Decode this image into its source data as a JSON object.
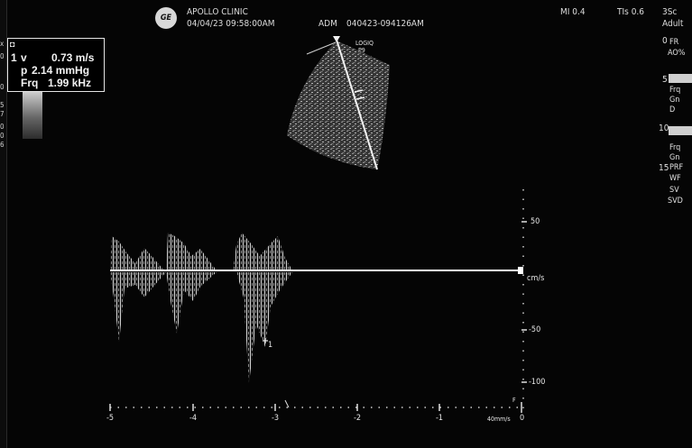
{
  "header": {
    "clinic_name": "APOLLO CLINIC",
    "datetime": "04/04/23 09:58:00AM",
    "operator": "ADM",
    "exam_id": "040423-094126AM",
    "mi": "MI 0.4",
    "tis": "TIs 0.6",
    "probe": "3Sc",
    "preset": "Adult",
    "logo_text": "GE"
  },
  "image_labels": {
    "logiq": "LOGIQ",
    "p9": "P9"
  },
  "measurement": {
    "marker": "1",
    "v_label": "v",
    "v_value": "0.73 m/s",
    "p_label": "p",
    "p_value": "2.14 mmHg",
    "frq_label": "Frq",
    "frq_value": "1.99 kHz"
  },
  "left_strip": [
    "x",
    "0",
    "0",
    "5",
    "7",
    "0",
    "0",
    "6"
  ],
  "right_params": {
    "depth_0": "0",
    "fr": "FR",
    "ao": "AO%",
    "depth_5": "5",
    "gn_box": "",
    "frq": "Frq",
    "gn": "Gn",
    "d": "D",
    "depth_10": "10",
    "frq2": "Frq",
    "gn2": "Gn",
    "depth_15": "15",
    "prf": "PRF",
    "wf": "WF",
    "sv": "SV",
    "svd": "SVD"
  },
  "doppler_scale": {
    "unit": "cm/s",
    "ticks": [
      "50",
      "-50",
      "-100"
    ]
  },
  "time_axis": {
    "ticks": [
      "-5",
      "-4",
      "-3",
      "-2",
      "-1",
      "0"
    ],
    "sweep": "40mm/s",
    "f_label": "F"
  },
  "cursor_marker": "1",
  "colors": {
    "background": "#050505",
    "baseline": "#ffffff",
    "text": "#e0e0e0"
  }
}
